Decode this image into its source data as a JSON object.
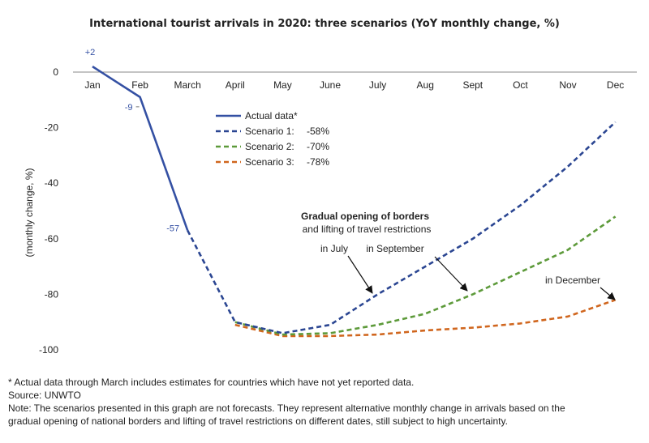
{
  "chart_data": {
    "type": "line",
    "title": "International tourist arrivals in 2020: three scenarios (YoY monthly change, %)",
    "ylabel": "(monthly change, %)",
    "xlabel": "",
    "categories": [
      "Jan",
      "Feb",
      "March",
      "April",
      "May",
      "June",
      "July",
      "Aug",
      "Sept",
      "Oct",
      "Nov",
      "Dec"
    ],
    "ylim": [
      -100,
      0
    ],
    "yticks": [
      0,
      -20,
      -40,
      -60,
      -80,
      -100
    ],
    "grid": false,
    "legend_position": "upper-left inside plot",
    "series": [
      {
        "name": "Actual data*",
        "style": "solid",
        "color": "#3450a3",
        "values": [
          2,
          -9,
          -57,
          null,
          null,
          null,
          null,
          null,
          null,
          null,
          null,
          null
        ]
      },
      {
        "name": "Scenario 1:",
        "value_label": "-58%",
        "style": "dashed",
        "color": "#2b4692",
        "values": [
          null,
          null,
          -57,
          -90,
          -94,
          -91,
          -80,
          -70,
          -60,
          -48,
          -34,
          -18
        ]
      },
      {
        "name": "Scenario 2:",
        "value_label": "-70%",
        "style": "dashed",
        "color": "#5d9a3a",
        "values": [
          null,
          null,
          null,
          -90,
          -94.5,
          -94,
          -91,
          -87,
          -80,
          -72,
          -64,
          -52
        ]
      },
      {
        "name": "Scenario 3:",
        "value_label": "-78%",
        "style": "dashed",
        "color": "#d0661e",
        "values": [
          null,
          null,
          null,
          -91,
          -95,
          -95,
          -94.5,
          -93,
          -92,
          -90.5,
          -88,
          -82
        ]
      }
    ],
    "data_labels": [
      {
        "text": "+2",
        "month": 0,
        "value": 2
      },
      {
        "text": "-9",
        "month": 1,
        "value": -9
      },
      {
        "text": "-57",
        "month": 2,
        "value": -57
      }
    ],
    "annotations": {
      "heading_line1": "Gradual opening of borders",
      "heading_line2": "and lifting of travel restrictions",
      "july": "in July",
      "september": "in September",
      "december": "in December"
    }
  },
  "notes": {
    "line1": "* Actual data through March includes estimates for countries which have not yet reported data.",
    "line2": "Source: UNWTO",
    "line3": "Note: The scenarios presented in this graph are not forecasts. They represent alternative monthly change in arrivals based on the",
    "line4": "gradual opening of national borders and lifting of travel restrictions on different dates, still subject to high uncertainty."
  }
}
